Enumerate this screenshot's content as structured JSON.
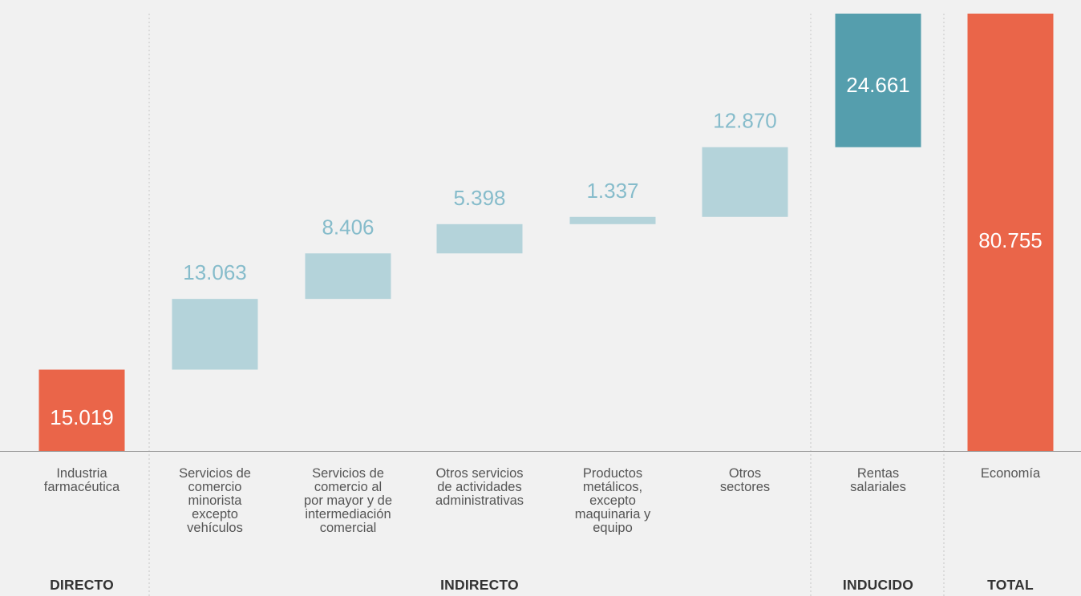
{
  "chart_data": {
    "type": "bar",
    "subtype": "waterfall",
    "categories": [
      "Industria\nfarmacéutica",
      "Servicios de\ncomercio\nminorista\nexcepto\nvehículos",
      "Servicios de\ncomercio al\npor mayor y de\nintermediación\ncomercial",
      "Otros servicios\nde actividades\nadministrativas",
      "Productos\nmetálicos,\nexcepto\nmaquinaria y\nequipo",
      "Otros\nsectores",
      "Rentas\nsalariales",
      "Economía"
    ],
    "values": [
      15019,
      13063,
      8406,
      5398,
      1337,
      12870,
      24661,
      80755
    ],
    "value_labels": [
      "15.019",
      "13.063",
      "8.406",
      "5.398",
      "1.337",
      "12.870",
      "24.661",
      "80.755"
    ],
    "bar_roles": [
      "direct",
      "indirect",
      "indirect",
      "indirect",
      "indirect",
      "indirect",
      "induced",
      "total"
    ],
    "groups": [
      {
        "label": "DIRECTO",
        "categories": [
          0
        ]
      },
      {
        "label": "INDIRECTO",
        "categories": [
          1,
          2,
          3,
          4,
          5
        ]
      },
      {
        "label": "INDUCIDO",
        "categories": [
          6
        ]
      },
      {
        "label": "TOTAL",
        "categories": [
          7
        ]
      }
    ],
    "colors": {
      "direct": "#ea6549",
      "indirect": "#b4d3da",
      "indirect_label": "#86bccb",
      "induced": "#559ead",
      "total": "#ea6549",
      "inside_label": "#ffffff",
      "separator": "#c8c8c8",
      "baseline": "#9a9a9a"
    },
    "ylim": [
      0,
      80755
    ],
    "grid": false,
    "legend": "none"
  }
}
